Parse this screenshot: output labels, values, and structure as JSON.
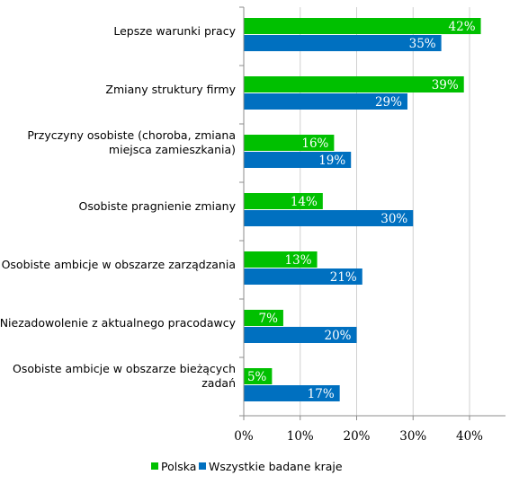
{
  "chart_data": {
    "type": "bar",
    "orientation": "horizontal",
    "categories": [
      [
        "Lepsze warunki pracy"
      ],
      [
        "Zmiany struktury firmy"
      ],
      [
        "Przyczyny osobiste (choroba, zmiana",
        "miejsca zamieszkania)"
      ],
      [
        "Osobiste pragnienie zmiany"
      ],
      [
        "Osobiste ambicje w obszarze zarządzania"
      ],
      [
        "Niezadowolenie z aktualnego pracodawcy"
      ],
      [
        "Osobiste ambicje w obszarze bieżących",
        "zadań"
      ]
    ],
    "series": [
      {
        "name": "Polska",
        "color": "#00c000",
        "values": [
          42,
          39,
          16,
          14,
          13,
          7,
          5
        ]
      },
      {
        "name": "Wszystkie badane kraje",
        "color": "#0070c0",
        "values": [
          35,
          29,
          19,
          30,
          21,
          20,
          17
        ]
      }
    ],
    "xlim": [
      0,
      40
    ],
    "xticks": [
      0,
      10,
      20,
      30,
      40
    ],
    "tick_suffix": "%",
    "value_suffix": "%",
    "grid": true,
    "legend": "bottom",
    "title": "",
    "xlabel": "",
    "ylabel": ""
  }
}
